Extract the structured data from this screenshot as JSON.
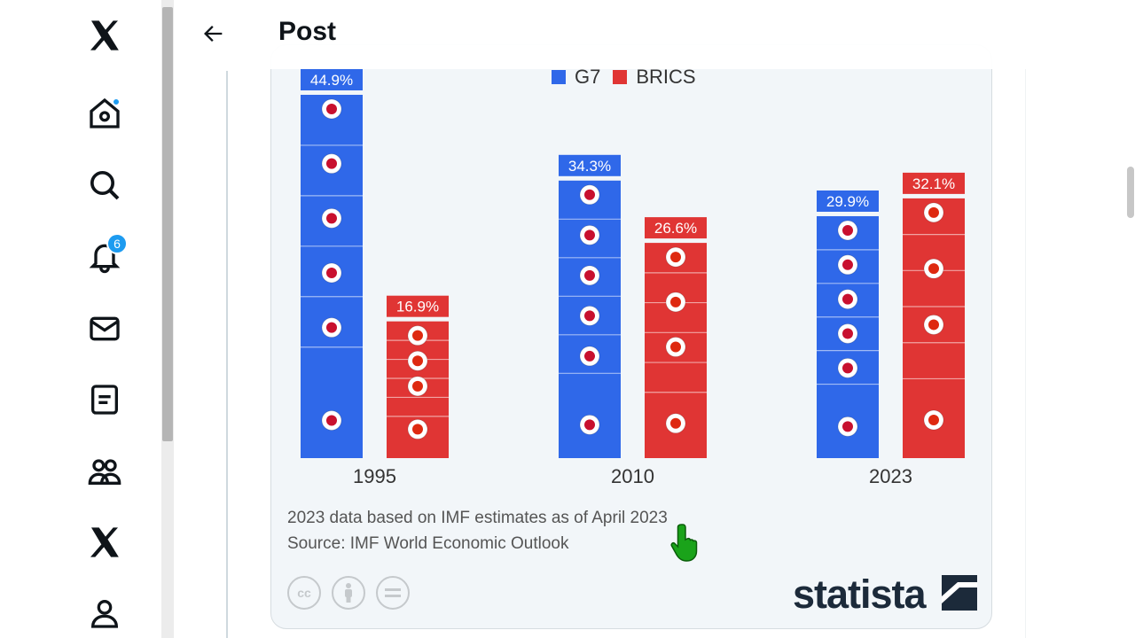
{
  "nav": {
    "items": [
      {
        "name": "x-logo-icon"
      },
      {
        "name": "home-icon",
        "has_dot": true
      },
      {
        "name": "explore-icon"
      },
      {
        "name": "notifications-icon",
        "badge": "6"
      },
      {
        "name": "messages-icon"
      },
      {
        "name": "lists-icon"
      },
      {
        "name": "communities-icon"
      },
      {
        "name": "premium-x-icon"
      },
      {
        "name": "profile-icon"
      }
    ],
    "accent": "#1d9bf0"
  },
  "header": {
    "title": "Post"
  },
  "chart_data": {
    "type": "bar",
    "categories": [
      "1995",
      "2010",
      "2023"
    ],
    "series": [
      {
        "name": "G7",
        "values": [
          44.9,
          34.3,
          29.9
        ],
        "color": "#2f68e9",
        "labels": [
          "44.9%",
          "34.3%",
          "29.9%"
        ]
      },
      {
        "name": "BRICS",
        "values": [
          16.9,
          26.6,
          32.1
        ],
        "color": "#e03534",
        "labels": [
          "16.9%",
          "26.6%",
          "32.1%"
        ]
      }
    ],
    "ylim": [
      0,
      45
    ],
    "grid": false,
    "legend": "top"
  },
  "notes": {
    "line1": "2023 data based on IMF estimates as of April 2023",
    "line2": "Source: IMF World Economic Outlook"
  },
  "license_icons": [
    "cc-icon",
    "attribution-icon",
    "no-derivatives-icon"
  ],
  "brand": "statista",
  "colors": {
    "g7": "#2f68e9",
    "brics": "#e03534",
    "card_bg": "#f2f6f9"
  }
}
